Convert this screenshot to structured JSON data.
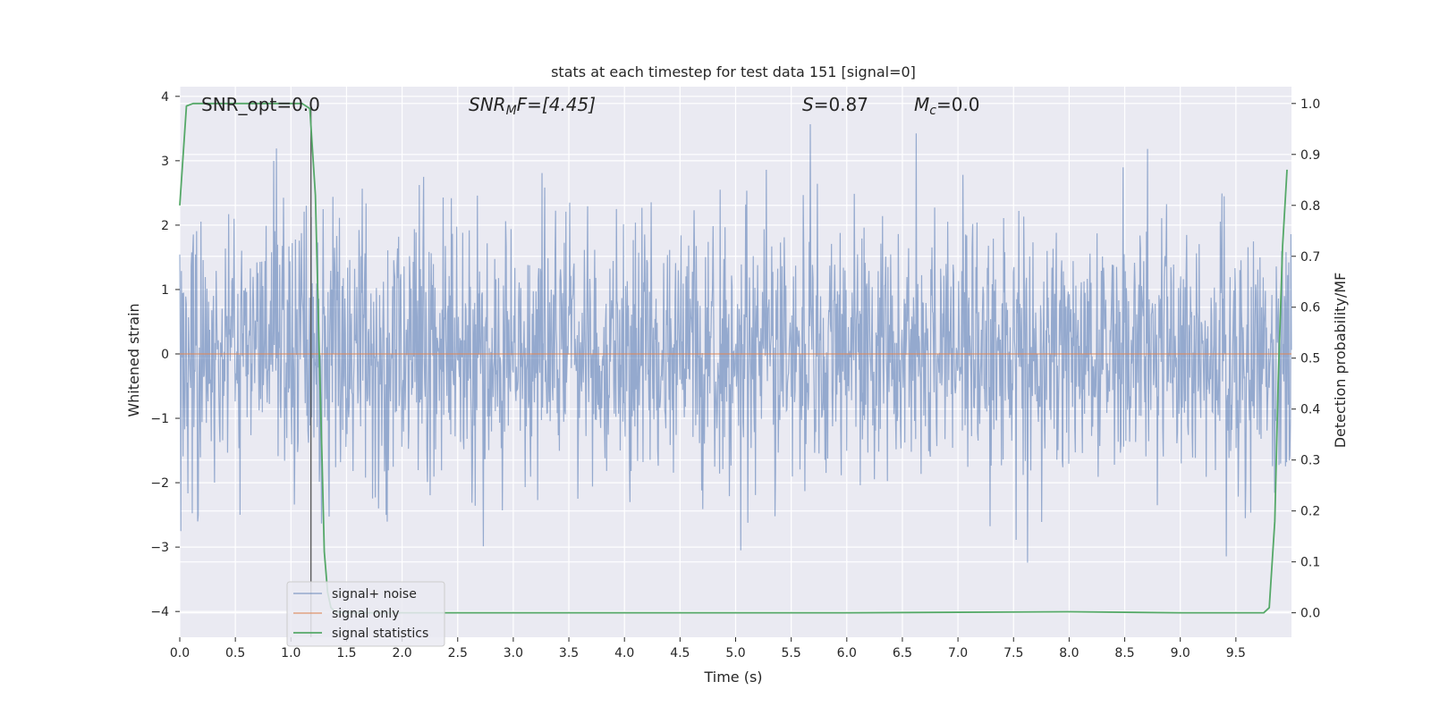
{
  "chart_data": {
    "type": "line",
    "title": "stats at each timestep for test data 151 [signal=0]",
    "xlabel": "Time (s)",
    "ylabel": "Whitened strain",
    "y2label": "Detection probability/MF",
    "xlim": [
      0.0,
      10.0
    ],
    "ylim": [
      -4.4,
      4.15
    ],
    "y2lim": [
      -0.048,
      1.033
    ],
    "x_ticks": [
      "0.0",
      "0.5",
      "1.0",
      "1.5",
      "2.0",
      "2.5",
      "3.0",
      "3.5",
      "4.0",
      "4.5",
      "5.0",
      "5.5",
      "6.0",
      "6.5",
      "7.0",
      "7.5",
      "8.0",
      "8.5",
      "9.0",
      "9.5"
    ],
    "y_ticks": [
      "4",
      "3",
      "2",
      "1",
      "0",
      "−1",
      "−2",
      "−3",
      "−4"
    ],
    "y2_ticks": [
      "1.0",
      "0.9",
      "0.8",
      "0.7",
      "0.6",
      "0.5",
      "0.4",
      "0.3",
      "0.2",
      "0.1",
      "0.0"
    ],
    "grid": true,
    "legend_position": "lower-left",
    "annotations": {
      "snr_opt": "SNR_opt=0.0",
      "snr_mf_main": "SNR",
      "snr_mf_sub": "M",
      "snr_mf_rest": "F=[4.45]",
      "s_italic": "S",
      "s_rest": "=0.87",
      "mc_main": "M",
      "mc_sub": "c",
      "mc_rest": "=0.0"
    },
    "marker_line_x": 1.18,
    "series": [
      {
        "name": "signal+ noise",
        "color": "#4c72b0",
        "kind": "noise",
        "sigma": 1.0,
        "n_points": 2048
      },
      {
        "name": "signal only",
        "color": "#dd8452",
        "kind": "constant",
        "value": 0.0
      },
      {
        "name": "signal statistics",
        "color": "#55a868",
        "axis": "right",
        "x": [
          0.0,
          0.06,
          0.12,
          0.3,
          0.6,
          0.9,
          1.1,
          1.17,
          1.22,
          1.25,
          1.28,
          1.3,
          1.33,
          1.36,
          1.4,
          1.5,
          2.0,
          3.0,
          4.0,
          5.0,
          6.0,
          7.0,
          8.0,
          9.0,
          9.6,
          9.75,
          9.8,
          9.85,
          9.88,
          9.92,
          9.96
        ],
        "y": [
          0.8,
          0.995,
          1.0,
          1.0,
          1.0,
          1.0,
          1.0,
          0.99,
          0.82,
          0.55,
          0.3,
          0.12,
          0.04,
          0.01,
          0.002,
          0.0,
          0.0,
          0.0,
          0.0,
          0.0,
          0.0,
          0.001,
          0.002,
          0.0,
          0.0,
          0.0,
          0.01,
          0.18,
          0.45,
          0.72,
          0.87
        ]
      }
    ]
  }
}
